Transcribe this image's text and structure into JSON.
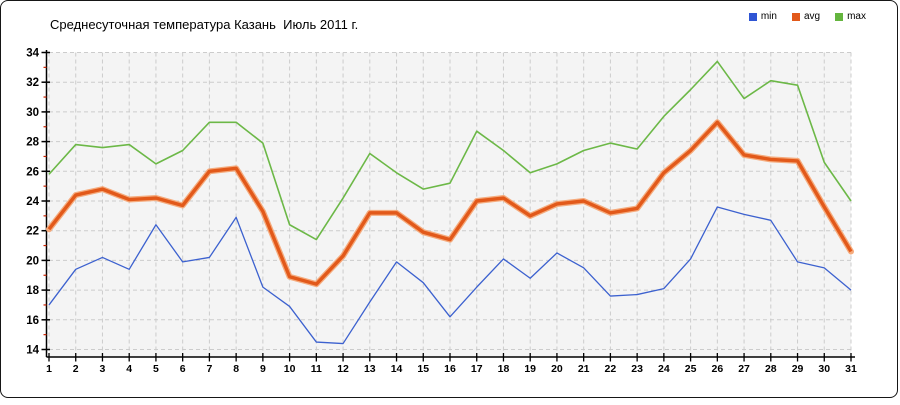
{
  "title": "Среднесуточная температура Казань  Июль 2011 г.",
  "legend": [
    {
      "label": "min",
      "color": "#2f55d4"
    },
    {
      "label": "avg",
      "color": "#e2591a"
    },
    {
      "label": "max",
      "color": "#64b53e"
    }
  ],
  "colors": {
    "frame_border": "#161616",
    "plot_bg": "#f4f4f4",
    "grid": "#cccccc",
    "axis": "#000000",
    "minor_tick": "#cc2200",
    "min_line": "#3c61cf",
    "avg_line": "#e2591a",
    "avg_halo": "#f5ab7d",
    "max_line": "#6cb847"
  },
  "chart_data": {
    "type": "line",
    "title": "Среднесуточная температура Казань  Июль 2011 г.",
    "x": [
      1,
      2,
      3,
      4,
      5,
      6,
      7,
      8,
      9,
      10,
      11,
      12,
      13,
      14,
      15,
      16,
      17,
      18,
      19,
      20,
      21,
      22,
      23,
      24,
      25,
      26,
      27,
      28,
      29,
      30,
      31
    ],
    "ylim": [
      14,
      34
    ],
    "ytick_step": 2,
    "grid": true,
    "legend_position": "top-right",
    "series": [
      {
        "name": "min",
        "color": "#3c61cf",
        "values": [
          17.0,
          19.4,
          20.2,
          19.4,
          22.4,
          19.9,
          20.2,
          22.9,
          18.2,
          16.9,
          14.5,
          14.4,
          17.2,
          19.9,
          18.5,
          16.2,
          18.2,
          20.1,
          18.8,
          20.5,
          19.5,
          17.6,
          17.7,
          18.1,
          20.1,
          23.6,
          23.1,
          22.7,
          19.9,
          19.5,
          18.0
        ]
      },
      {
        "name": "avg",
        "color": "#e2591a",
        "values": [
          22.1,
          24.4,
          24.8,
          24.1,
          24.2,
          23.7,
          26.0,
          26.2,
          23.3,
          18.9,
          18.4,
          20.3,
          23.2,
          23.2,
          21.9,
          21.4,
          24.0,
          24.2,
          23.0,
          23.8,
          24.0,
          23.2,
          23.5,
          25.9,
          27.4,
          29.3,
          27.1,
          26.8,
          26.7,
          23.6,
          20.6
        ]
      },
      {
        "name": "max",
        "color": "#6cb847",
        "values": [
          25.8,
          27.8,
          27.6,
          27.8,
          26.5,
          27.4,
          29.3,
          29.3,
          27.9,
          22.4,
          21.4,
          24.2,
          27.2,
          25.9,
          24.8,
          25.2,
          28.7,
          27.4,
          25.9,
          26.5,
          27.4,
          27.9,
          27.5,
          29.7,
          31.5,
          33.4,
          30.9,
          32.1,
          31.8,
          26.6,
          24.0
        ]
      }
    ]
  }
}
